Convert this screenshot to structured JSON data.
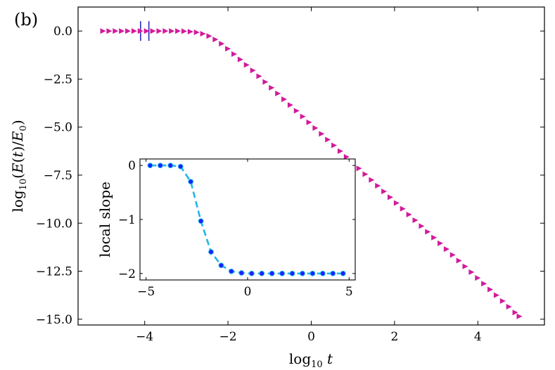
{
  "panel_label": "(b)",
  "colors": {
    "main_marker": "#d21a9a",
    "inset_line": "#1fb6e8",
    "inset_marker": "#1a20ff",
    "vertical_marks": "#2a2ac8",
    "axis": "#000000"
  },
  "chart_data": [
    {
      "id": "main",
      "type": "scatter",
      "marker": "right-pointing-triangle",
      "title": "",
      "xlabel": "log10 t",
      "ylabel": "log10 (E(t)/E0)",
      "xlim": [
        -5.6,
        5.6
      ],
      "ylim": [
        -15.3,
        1.25
      ],
      "xticks": [
        -4,
        -2,
        0,
        2,
        4
      ],
      "xtick_labels": [
        "−4",
        "−2",
        "0",
        "2",
        "4"
      ],
      "yticks": [
        0.0,
        -2.5,
        -5.0,
        -7.5,
        -10.0,
        -12.5,
        -15.0
      ],
      "ytick_labels": [
        "0.0",
        "−2.5",
        "−5.0",
        "−7.5",
        "−10.0",
        "−12.5",
        "−15.0"
      ],
      "vertical_marks_x": [
        -4.1,
        -3.9
      ],
      "series": [
        {
          "name": "E(t)/E0",
          "x": [
            -5.0,
            -4.85,
            -4.7,
            -4.55,
            -4.4,
            -4.25,
            -4.1,
            -3.95,
            -3.8,
            -3.65,
            -3.5,
            -3.35,
            -3.2,
            -3.05,
            -2.9,
            -2.75,
            -2.6,
            -2.45,
            -2.3,
            -2.15,
            -2.0,
            -1.85,
            -1.7,
            -1.55,
            -1.4,
            -1.25,
            -1.1,
            -0.95,
            -0.8,
            -0.65,
            -0.5,
            -0.35,
            -0.2,
            -0.05,
            0.1,
            0.25,
            0.4,
            0.55,
            0.7,
            0.85,
            1.0,
            1.15,
            1.3,
            1.45,
            1.6,
            1.75,
            1.9,
            2.05,
            2.2,
            2.35,
            2.5,
            2.65,
            2.8,
            2.95,
            3.1,
            3.25,
            3.4,
            3.55,
            3.7,
            3.85,
            4.0,
            4.15,
            4.3,
            4.45,
            4.6,
            4.75,
            4.9,
            5.0
          ],
          "y": [
            0.0,
            0.0,
            0.0,
            0.0,
            0.0,
            0.0,
            0.0,
            0.0,
            0.0,
            0.0,
            0.0,
            0.0,
            0.0,
            -0.01,
            -0.03,
            -0.07,
            -0.14,
            -0.26,
            -0.44,
            -0.66,
            -0.92,
            -1.2,
            -1.48,
            -1.76,
            -2.05,
            -2.35,
            -2.65,
            -2.95,
            -3.25,
            -3.55,
            -3.85,
            -4.15,
            -4.45,
            -4.75,
            -5.05,
            -5.35,
            -5.65,
            -5.95,
            -6.25,
            -6.55,
            -6.85,
            -7.15,
            -7.45,
            -7.75,
            -8.05,
            -8.35,
            -8.65,
            -8.95,
            -9.25,
            -9.55,
            -9.85,
            -10.15,
            -10.45,
            -10.75,
            -11.05,
            -11.35,
            -11.65,
            -11.95,
            -12.25,
            -12.55,
            -12.85,
            -13.15,
            -13.45,
            -13.75,
            -14.05,
            -14.35,
            -14.65,
            -14.85
          ]
        }
      ]
    },
    {
      "id": "inset",
      "type": "line",
      "marker": "circle",
      "line_style": "dashed",
      "title": "",
      "xlabel": "",
      "ylabel": "local slope",
      "xlim": [
        -5.3,
        5.3
      ],
      "ylim": [
        -2.12,
        0.12
      ],
      "xticks": [
        -5,
        0,
        5
      ],
      "xtick_labels": [
        "−5",
        "0",
        "5"
      ],
      "yticks": [
        0,
        -1,
        -2
      ],
      "ytick_labels": [
        "0",
        "−1",
        "−2"
      ],
      "series": [
        {
          "name": "local slope",
          "x": [
            -4.8,
            -4.3,
            -3.8,
            -3.3,
            -2.8,
            -2.3,
            -1.8,
            -1.3,
            -0.8,
            -0.3,
            0.2,
            0.7,
            1.2,
            1.7,
            2.2,
            2.7,
            3.2,
            3.7,
            4.2,
            4.7
          ],
          "y": [
            0.0,
            0.0,
            0.0,
            -0.02,
            -0.3,
            -1.03,
            -1.6,
            -1.85,
            -1.96,
            -1.99,
            -2.0,
            -2.0,
            -2.0,
            -2.0,
            -2.0,
            -2.0,
            -2.0,
            -2.0,
            -2.0,
            -2.0
          ]
        }
      ]
    }
  ]
}
